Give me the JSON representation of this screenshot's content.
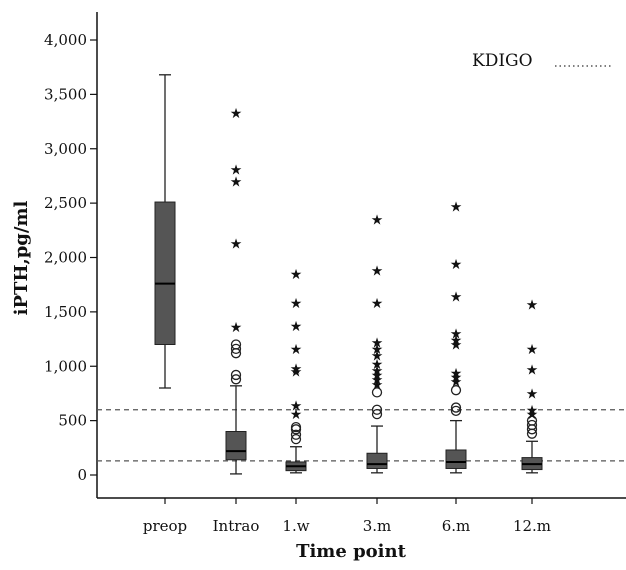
{
  "chart_data": {
    "type": "box",
    "title": "",
    "xlabel": "Time point",
    "ylabel": "iPTH,pg/ml",
    "ylim": [
      -300,
      4000
    ],
    "y_ticks": [
      0,
      500,
      1000,
      1500,
      2000,
      2500,
      3000,
      3500,
      4000
    ],
    "y_tick_labels": [
      "0",
      "500",
      "1,000",
      "1,500",
      "2,000",
      "2,500",
      "3,000",
      "3,500",
      "4,000"
    ],
    "categories": [
      "preop",
      "Intrao",
      "1.w",
      "3.m",
      "6.m",
      "12.m"
    ],
    "boxes": [
      {
        "category": "preop",
        "whisker_low": 800,
        "q1": 1200,
        "median": 1760,
        "q3": 2510,
        "whisker_high": 3680,
        "outliers": [],
        "extremes": []
      },
      {
        "category": "Intrao",
        "whisker_low": 10,
        "q1": 140,
        "median": 220,
        "q3": 400,
        "whisker_high": 820,
        "outliers": [
          880,
          920,
          1120,
          1160,
          1200
        ],
        "extremes": [
          1360,
          2130,
          2700,
          2810,
          3330
        ]
      },
      {
        "category": "1.w",
        "whisker_low": 20,
        "q1": 40,
        "median": 80,
        "q3": 120,
        "whisker_high": 260,
        "outliers": [
          330,
          370,
          420,
          440
        ],
        "extremes": [
          560,
          640,
          950,
          980,
          1160,
          1370,
          1580,
          1850
        ]
      },
      {
        "category": "3.m",
        "whisker_low": 20,
        "q1": 60,
        "median": 100,
        "q3": 200,
        "whisker_high": 450,
        "outliers": [
          560,
          600,
          760
        ],
        "extremes": [
          830,
          880,
          920,
          960,
          1020,
          1100,
          1160,
          1220,
          1580,
          1880,
          2350
        ]
      },
      {
        "category": "6.m",
        "whisker_low": 20,
        "q1": 60,
        "median": 120,
        "q3": 230,
        "whisker_high": 500,
        "outliers": [
          590,
          620,
          780
        ],
        "extremes": [
          860,
          900,
          940,
          1200,
          1240,
          1300,
          1640,
          1940,
          2470
        ]
      },
      {
        "category": "12.m",
        "whisker_low": 20,
        "q1": 50,
        "median": 100,
        "q3": 160,
        "whisker_high": 310,
        "outliers": [
          380,
          420,
          460,
          500
        ],
        "extremes": [
          560,
          600,
          750,
          970,
          1160,
          1570
        ]
      }
    ],
    "reference_lines": [
      {
        "label": "KDIGO",
        "y": 130
      },
      {
        "label": "KDIGO",
        "y": 600
      }
    ],
    "legend": {
      "label": "KDIGO",
      "position": "top-right"
    },
    "colors": {
      "box_fill": "#555555",
      "line": "#222222",
      "reference": "#555555"
    }
  }
}
